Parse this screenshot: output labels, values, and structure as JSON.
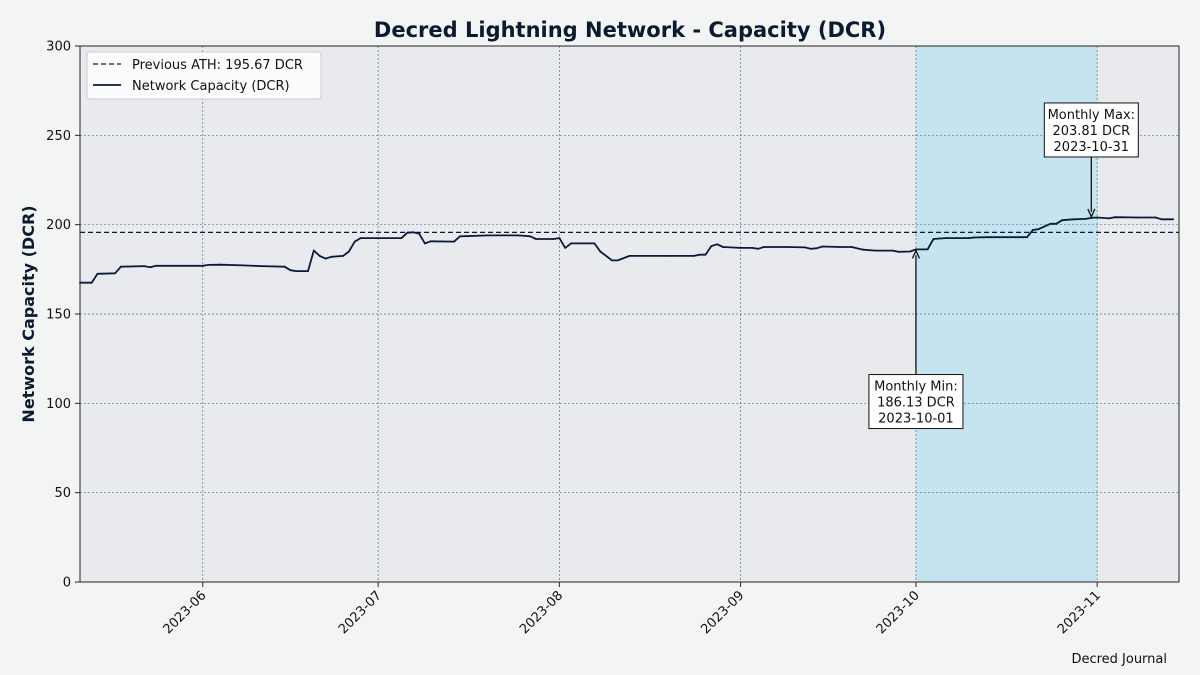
{
  "chart_data": {
    "type": "line",
    "title": "Decred Lightning Network - Capacity (DCR)",
    "xlabel": "",
    "ylabel": "Network Capacity (DCR)",
    "xlim": [
      "2023-05-11",
      "2023-11-15"
    ],
    "ylim": [
      0,
      300
    ],
    "yticks": [
      0,
      50,
      100,
      150,
      200,
      250,
      300
    ],
    "xticks": [
      "2023-06-01",
      "2023-07-01",
      "2023-08-01",
      "2023-09-01",
      "2023-10-01",
      "2023-11-01"
    ],
    "xtick_labels": [
      "2023-06",
      "2023-07",
      "2023-08",
      "2023-09",
      "2023-10",
      "2023-11"
    ],
    "grid": true,
    "legend": "top-left",
    "highlight_span": {
      "start": "2023-10-01",
      "end": "2023-11-01",
      "color": "#c5e4ef"
    },
    "reference_line": {
      "name": "Previous ATH: 195.67 DCR",
      "value": 195.67,
      "style": "dashed",
      "color": "#0b1a3a"
    },
    "series": [
      {
        "name": "Network Capacity (DCR)",
        "color": "#0b1a3a",
        "points": [
          [
            "2023-05-11",
            167.5
          ],
          [
            "2023-05-13",
            167.5
          ],
          [
            "2023-05-14",
            172.5
          ],
          [
            "2023-05-17",
            172.8
          ],
          [
            "2023-05-18",
            176.5
          ],
          [
            "2023-05-22",
            176.8
          ],
          [
            "2023-05-23",
            176.2
          ],
          [
            "2023-05-24",
            177.0
          ],
          [
            "2023-05-31",
            177.0
          ],
          [
            "2023-06-01",
            177.0
          ],
          [
            "2023-06-02",
            177.5
          ],
          [
            "2023-06-04",
            177.6
          ],
          [
            "2023-06-08",
            177.2
          ],
          [
            "2023-06-11",
            176.8
          ],
          [
            "2023-06-15",
            176.5
          ],
          [
            "2023-06-16",
            174.5
          ],
          [
            "2023-06-17",
            174.0
          ],
          [
            "2023-06-19",
            174.0
          ],
          [
            "2023-06-20",
            185.5
          ],
          [
            "2023-06-21",
            182.5
          ],
          [
            "2023-06-22",
            181.0
          ],
          [
            "2023-06-23",
            182.0
          ],
          [
            "2023-06-25",
            182.5
          ],
          [
            "2023-06-26",
            185.0
          ],
          [
            "2023-06-27",
            190.5
          ],
          [
            "2023-06-28",
            192.5
          ],
          [
            "2023-07-05",
            192.5
          ],
          [
            "2023-07-06",
            195.5
          ],
          [
            "2023-07-07",
            195.7
          ],
          [
            "2023-07-08",
            195.0
          ],
          [
            "2023-07-09",
            189.5
          ],
          [
            "2023-07-10",
            190.7
          ],
          [
            "2023-07-14",
            190.5
          ],
          [
            "2023-07-15",
            193.5
          ],
          [
            "2023-07-20",
            194.0
          ],
          [
            "2023-07-25",
            194.0
          ],
          [
            "2023-07-27",
            193.5
          ],
          [
            "2023-07-28",
            192.0
          ],
          [
            "2023-07-31",
            192.0
          ],
          [
            "2023-08-01",
            192.5
          ],
          [
            "2023-08-02",
            187.0
          ],
          [
            "2023-08-03",
            189.5
          ],
          [
            "2023-08-05",
            189.5
          ],
          [
            "2023-08-07",
            189.5
          ],
          [
            "2023-08-08",
            185.0
          ],
          [
            "2023-08-10",
            180.0
          ],
          [
            "2023-08-11",
            180.0
          ],
          [
            "2023-08-13",
            182.5
          ],
          [
            "2023-08-20",
            182.5
          ],
          [
            "2023-08-24",
            182.5
          ],
          [
            "2023-08-25",
            183.2
          ],
          [
            "2023-08-26",
            183.2
          ],
          [
            "2023-08-27",
            188.0
          ],
          [
            "2023-08-28",
            189.0
          ],
          [
            "2023-08-29",
            187.5
          ],
          [
            "2023-09-01",
            187.0
          ],
          [
            "2023-09-03",
            187.0
          ],
          [
            "2023-09-04",
            186.5
          ],
          [
            "2023-09-05",
            187.5
          ],
          [
            "2023-09-09",
            187.5
          ],
          [
            "2023-09-12",
            187.3
          ],
          [
            "2023-09-13",
            186.5
          ],
          [
            "2023-09-14",
            186.8
          ],
          [
            "2023-09-15",
            187.8
          ],
          [
            "2023-09-18",
            187.5
          ],
          [
            "2023-09-20",
            187.5
          ],
          [
            "2023-09-22",
            186.0
          ],
          [
            "2023-09-24",
            185.5
          ],
          [
            "2023-09-27",
            185.5
          ],
          [
            "2023-09-28",
            184.8
          ],
          [
            "2023-09-30",
            185.0
          ],
          [
            "2023-10-01",
            186.13
          ],
          [
            "2023-10-03",
            186.2
          ],
          [
            "2023-10-04",
            192.0
          ],
          [
            "2023-10-06",
            192.5
          ],
          [
            "2023-10-10",
            192.5
          ],
          [
            "2023-10-11",
            192.8
          ],
          [
            "2023-10-13",
            193.0
          ],
          [
            "2023-10-19",
            193.0
          ],
          [
            "2023-10-20",
            193.0
          ],
          [
            "2023-10-21",
            197.0
          ],
          [
            "2023-10-22",
            197.5
          ],
          [
            "2023-10-24",
            200.5
          ],
          [
            "2023-10-25",
            200.5
          ],
          [
            "2023-10-26",
            202.5
          ],
          [
            "2023-10-28",
            203.0
          ],
          [
            "2023-10-30",
            203.2
          ],
          [
            "2023-10-31",
            203.81
          ],
          [
            "2023-11-01",
            204.0
          ],
          [
            "2023-11-03",
            203.5
          ],
          [
            "2023-11-04",
            204.2
          ],
          [
            "2023-11-08",
            204.0
          ],
          [
            "2023-11-11",
            204.0
          ],
          [
            "2023-11-12",
            203.0
          ],
          [
            "2023-11-14",
            203.0
          ]
        ]
      }
    ],
    "annotations": [
      {
        "name": "monthly-min",
        "lines": [
          "Monthly Min:",
          "186.13 DCR",
          "2023-10-01"
        ],
        "point": [
          "2023-10-01",
          186.13
        ],
        "text_at": [
          "2023-10-01",
          101
        ]
      },
      {
        "name": "monthly-max",
        "lines": [
          "Monthly Max:",
          "203.81 DCR",
          "2023-10-31"
        ],
        "point": [
          "2023-10-31",
          203.81
        ],
        "text_at": [
          "2023-10-31",
          253
        ]
      }
    ],
    "credit": "Decred Journal"
  }
}
